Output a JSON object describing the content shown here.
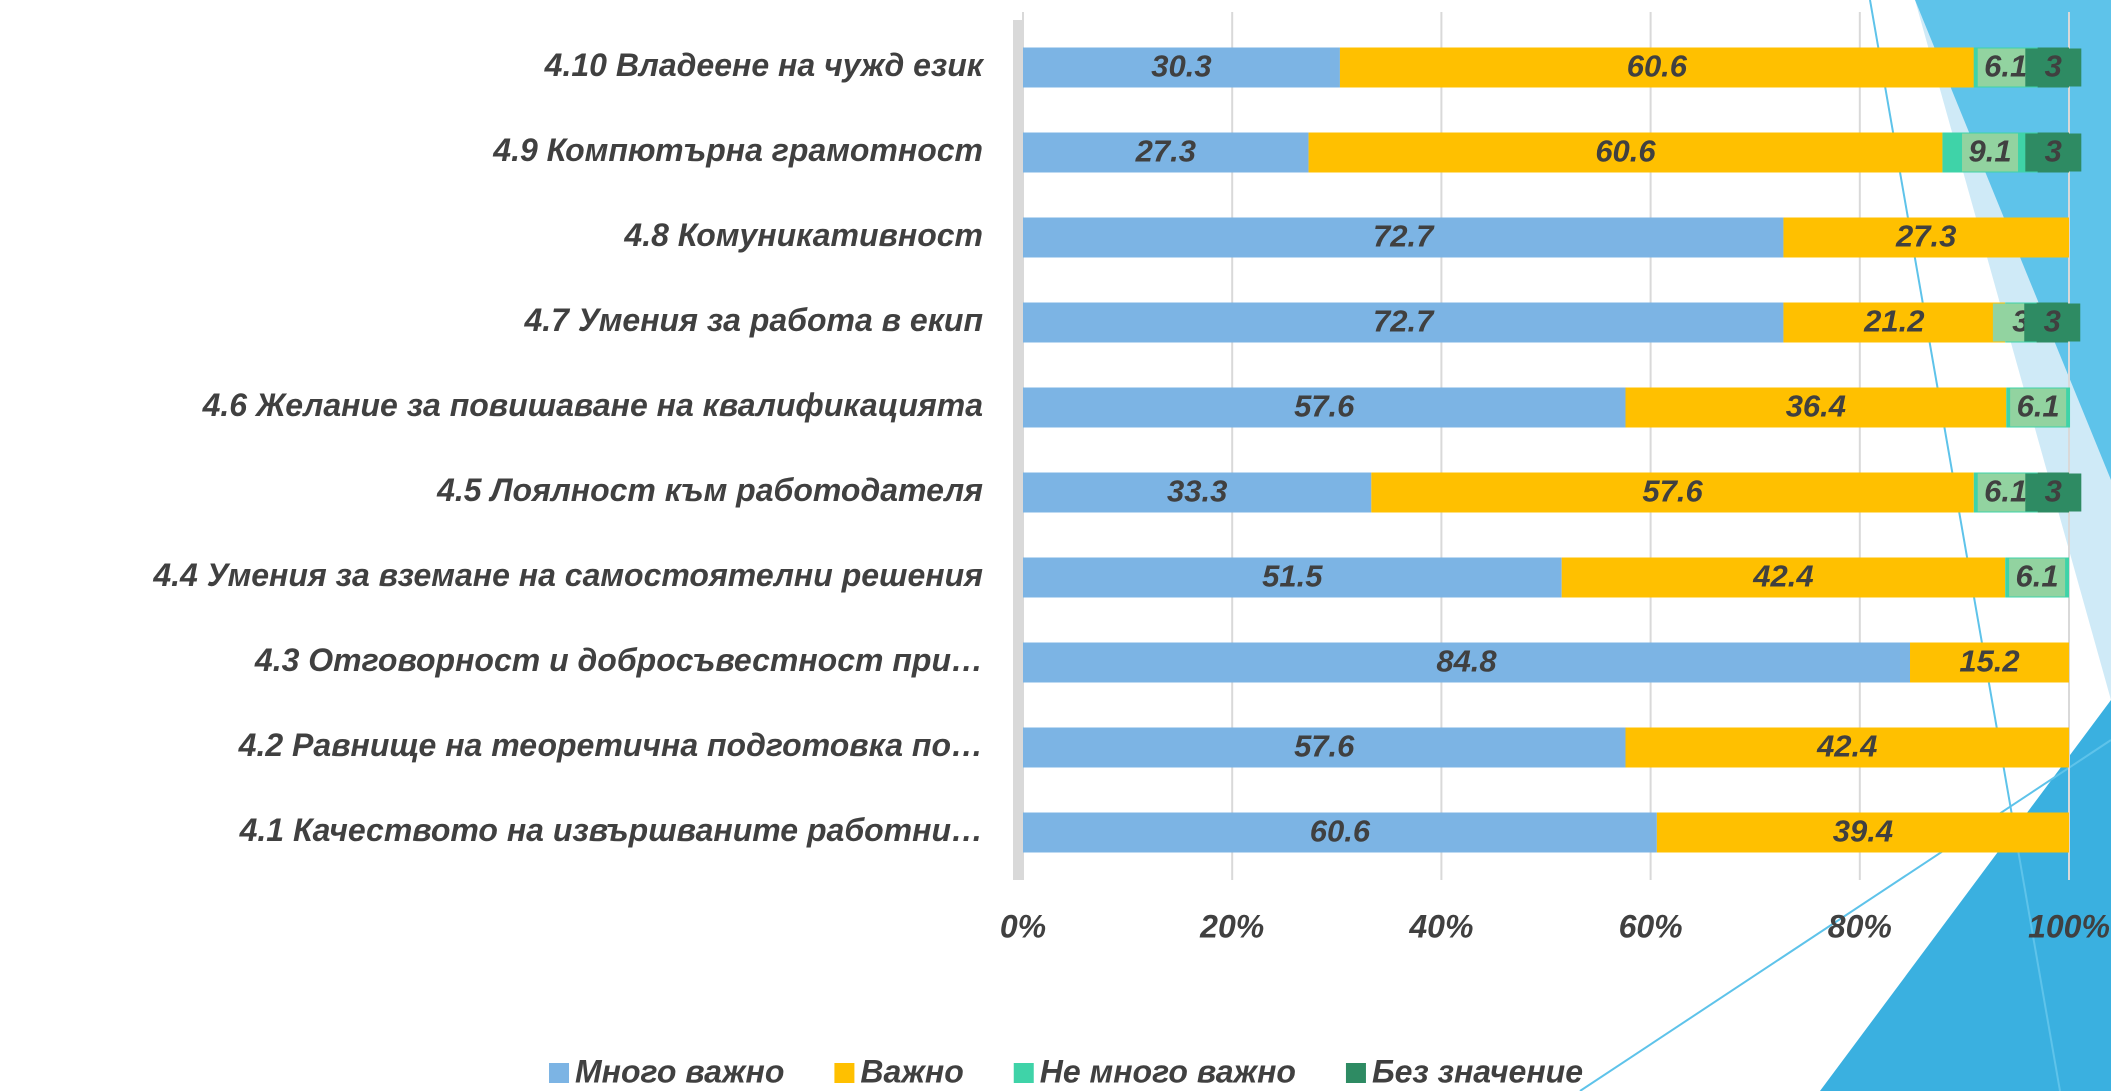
{
  "chart_data": {
    "type": "stacked_barh",
    "categories": [
      "4.10 Владеене на чужд език",
      "4.9 Компютърна грамотност",
      "4.8 Комуникативност",
      "4.7 Умения за работа в екип",
      "4.6 Желание за повишаване на квалификацията",
      "4.5 Лоялност към работодателя",
      "4.4 Умения за вземане на самостоятелни решения",
      "4.3 Отговорност и добросъвестност при…",
      "4.2 Равнище на теоретична подготовка по…",
      "4.1 Качеството на извършваните работни…"
    ],
    "series": [
      {
        "name": "Много важно",
        "color": "#7cb4e4",
        "values": [
          30.3,
          27.3,
          72.7,
          72.7,
          57.6,
          33.3,
          51.5,
          84.8,
          57.6,
          60.6
        ]
      },
      {
        "name": "Важно",
        "color": "#ffc000",
        "values": [
          60.6,
          60.6,
          27.3,
          21.2,
          36.4,
          57.6,
          42.4,
          15.2,
          42.4,
          39.4
        ]
      },
      {
        "name": "Не много важно",
        "color": "#3fd3a8",
        "values": [
          6.1,
          9.1,
          null,
          3,
          6.1,
          6.1,
          6.1,
          null,
          null,
          null
        ]
      },
      {
        "name": "Без значение",
        "color": "#2e8b63",
        "values": [
          3,
          3,
          null,
          3,
          null,
          3,
          null,
          null,
          null,
          null
        ]
      }
    ],
    "xlim": [
      0,
      100
    ],
    "xticks": [
      {
        "value": 0,
        "label": "0%"
      },
      {
        "value": 20,
        "label": "20%"
      },
      {
        "value": 40,
        "label": "40%"
      },
      {
        "value": 60,
        "label": "60%"
      },
      {
        "value": 80,
        "label": "80%"
      },
      {
        "value": 100,
        "label": "100%"
      }
    ],
    "grid": true,
    "legend": "bottom"
  }
}
